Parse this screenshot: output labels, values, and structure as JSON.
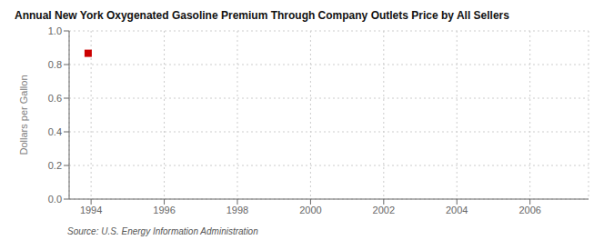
{
  "chart_data": {
    "type": "scatter",
    "title": "Annual New York Oxygenated Gasoline Premium Through Company Outlets Price by All Sellers",
    "y_label": "Dollars per Gallon",
    "annotations": [
      "Source: U.S. Energy Information Administration"
    ],
    "x": [
      1993.92
    ],
    "values": [
      0.867
    ],
    "color": "#cc0000",
    "marker": "square",
    "xlim": [
      1993.4,
      2007.6
    ],
    "ylim": [
      0.0,
      1.0
    ],
    "xticks": [
      1994,
      1996,
      1998,
      2000,
      2002,
      2004,
      2006
    ],
    "yticks": [
      {
        "value": 0.0,
        "label": "0.0"
      },
      0.2,
      0.4,
      0.6,
      0.8,
      {
        "value": 1.0,
        "label": "1.0"
      }
    ],
    "grid": true
  }
}
